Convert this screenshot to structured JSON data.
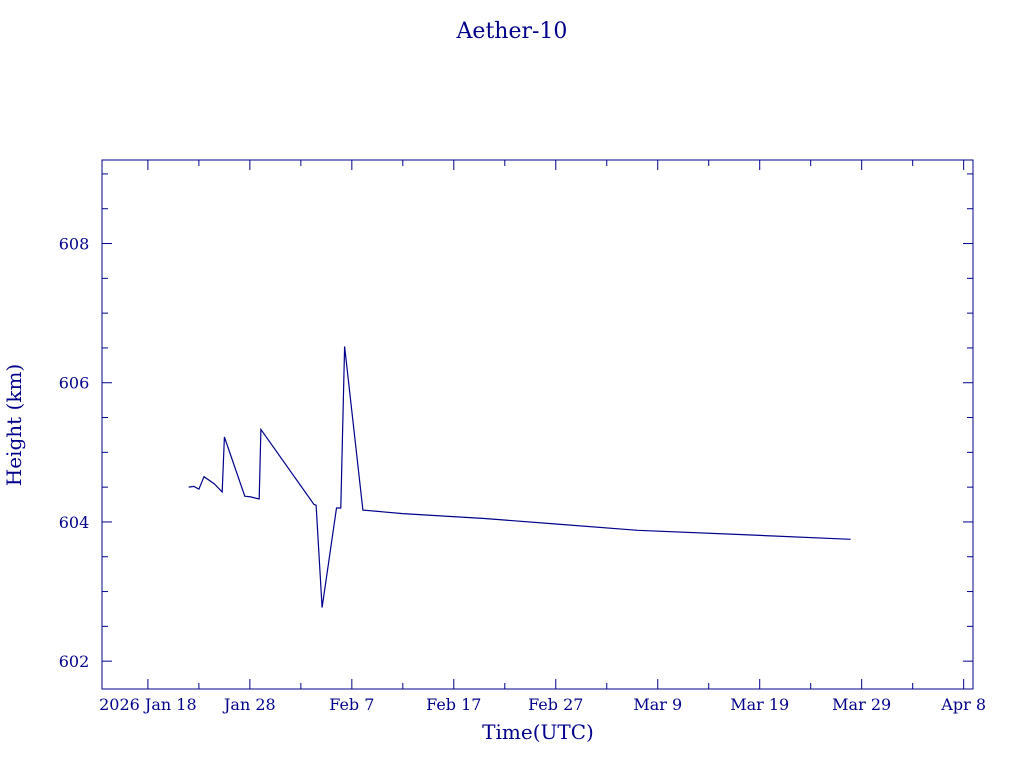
{
  "chart_data": {
    "type": "line",
    "title": "Aether-10",
    "xlabel": "Time(UTC)",
    "ylabel": "Height (km)",
    "color": "#00008B",
    "grid": false,
    "xlim": [
      "2026-01-13T12:00:00",
      "2026-04-08T22:00:00"
    ],
    "ylim": [
      601.6,
      609.2
    ],
    "x_ticks": [
      {
        "date": "2026-01-18",
        "label": "2026 Jan 18"
      },
      {
        "date": "2026-01-28",
        "label": "Jan 28"
      },
      {
        "date": "2026-02-07",
        "label": "Feb  7"
      },
      {
        "date": "2026-02-17",
        "label": "Feb 17"
      },
      {
        "date": "2026-02-27",
        "label": "Feb 27"
      },
      {
        "date": "2026-03-09",
        "label": "Mar  9"
      },
      {
        "date": "2026-03-19",
        "label": "Mar 19"
      },
      {
        "date": "2026-03-29",
        "label": "Mar 29"
      },
      {
        "date": "2026-04-08",
        "label": "Apr  8"
      }
    ],
    "y_ticks": [
      {
        "value": 602,
        "label": "602"
      },
      {
        "value": 604,
        "label": "604"
      },
      {
        "value": 606,
        "label": "606"
      },
      {
        "value": 608,
        "label": "608"
      }
    ],
    "x_minor_ticks": [
      "2026-01-23",
      "2026-02-02",
      "2026-02-12",
      "2026-02-22",
      "2026-03-04",
      "2026-03-14",
      "2026-03-24",
      "2026-04-03"
    ],
    "y_minor_ticks": [
      602.5,
      603,
      603.5,
      604.5,
      605,
      605.5,
      606.5,
      607,
      607.5,
      608.5,
      609
    ],
    "series": [
      {
        "points": [
          {
            "x": "2026-01-22T00:00:00",
            "y": 604.5
          },
          {
            "x": "2026-01-22T12:00:00",
            "y": 604.51
          },
          {
            "x": "2026-01-23T00:00:00",
            "y": 604.47
          },
          {
            "x": "2026-01-23T12:00:00",
            "y": 604.65
          },
          {
            "x": "2026-01-24T12:00:00",
            "y": 604.55
          },
          {
            "x": "2026-01-25T07:00:00",
            "y": 604.43
          },
          {
            "x": "2026-01-25T12:00:00",
            "y": 605.22
          },
          {
            "x": "2026-01-27T12:00:00",
            "y": 604.37
          },
          {
            "x": "2026-01-28T02:00:00",
            "y": 604.36
          },
          {
            "x": "2026-01-28T22:00:00",
            "y": 604.33
          },
          {
            "x": "2026-01-29T02:00:00",
            "y": 605.33
          },
          {
            "x": "2026-02-03T07:00:00",
            "y": 604.25
          },
          {
            "x": "2026-02-03T12:00:00",
            "y": 604.24
          },
          {
            "x": "2026-02-04T02:00:00",
            "y": 602.77
          },
          {
            "x": "2026-02-05T12:00:00",
            "y": 604.2
          },
          {
            "x": "2026-02-05T22:00:00",
            "y": 604.2
          },
          {
            "x": "2026-02-06T07:00:00",
            "y": 606.52
          },
          {
            "x": "2026-02-08T02:00:00",
            "y": 604.17
          },
          {
            "x": "2026-02-12T00:00:00",
            "y": 604.12
          },
          {
            "x": "2026-02-20T00:00:00",
            "y": 604.05
          },
          {
            "x": "2026-02-27T00:00:00",
            "y": 603.97
          },
          {
            "x": "2026-03-07T00:00:00",
            "y": 603.88
          },
          {
            "x": "2026-03-17T00:00:00",
            "y": 603.82
          },
          {
            "x": "2026-03-27T22:00:00",
            "y": 603.75
          }
        ]
      }
    ]
  }
}
